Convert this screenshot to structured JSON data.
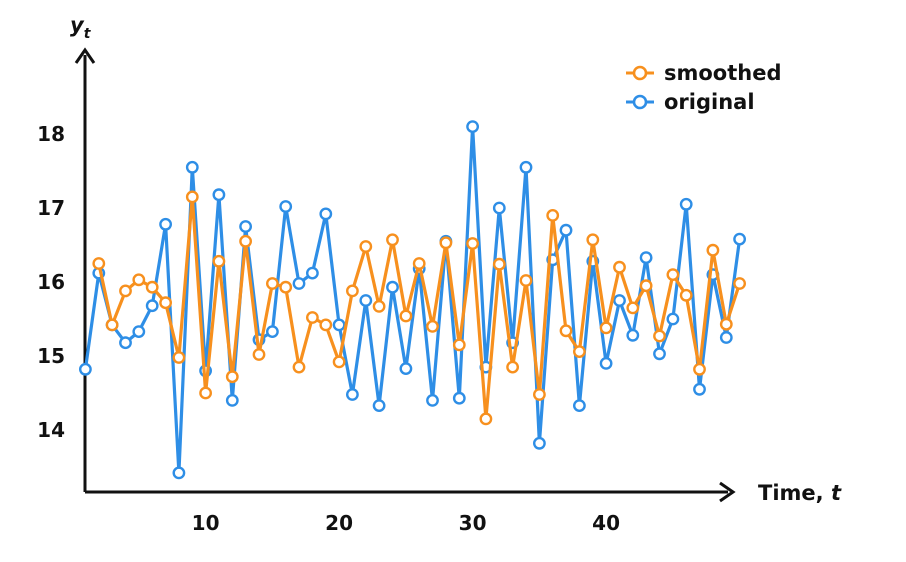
{
  "chart_data": {
    "type": "line",
    "xlabel_prefix": "Time, ",
    "xlabel_var": "t",
    "ylabel_base": "y",
    "ylabel_sub": "t",
    "x_ticks": [
      10,
      20,
      30,
      40
    ],
    "y_ticks": [
      14,
      15,
      16,
      17,
      18
    ],
    "xlim": [
      0,
      50
    ],
    "ylim": [
      12.5,
      19.3
    ],
    "grid": false,
    "legend_position": "top-right",
    "colors": {
      "smoothed": "#f7901e",
      "original": "#2e8ee6",
      "axis": "#111111"
    },
    "x": [
      1,
      2,
      3,
      4,
      5,
      6,
      7,
      8,
      9,
      10,
      11,
      12,
      13,
      14,
      15,
      16,
      17,
      18,
      19,
      20,
      21,
      22,
      23,
      24,
      25,
      26,
      27,
      28,
      29,
      30,
      31,
      32,
      33,
      34,
      35,
      36,
      37,
      38,
      39,
      40,
      41,
      42,
      43,
      44,
      45,
      46,
      47,
      48,
      49,
      50
    ],
    "series": [
      {
        "name": "original",
        "values": [
          14.82,
          16.12,
          15.42,
          15.18,
          15.33,
          15.68,
          16.78,
          13.42,
          17.55,
          14.8,
          17.18,
          14.4,
          16.75,
          15.22,
          15.33,
          17.02,
          15.98,
          16.12,
          16.92,
          15.42,
          14.48,
          15.75,
          14.33,
          15.93,
          14.83,
          16.18,
          14.4,
          16.55,
          14.43,
          18.1,
          14.85,
          17.0,
          15.18,
          17.55,
          13.82,
          16.3,
          16.7,
          14.33,
          16.28,
          14.9,
          15.75,
          15.28,
          16.33,
          15.03,
          15.5,
          17.05,
          14.55,
          16.1,
          15.25,
          16.58
        ]
      },
      {
        "name": "smoothed",
        "values": [
          null,
          16.25,
          15.42,
          15.88,
          16.03,
          15.93,
          15.72,
          14.98,
          17.15,
          14.5,
          16.28,
          14.72,
          16.55,
          15.02,
          15.98,
          15.93,
          14.85,
          15.52,
          15.42,
          14.92,
          15.88,
          16.48,
          15.67,
          16.57,
          15.54,
          16.25,
          15.4,
          16.53,
          15.15,
          16.52,
          14.15,
          16.24,
          14.85,
          16.02,
          14.48,
          16.9,
          15.34,
          15.06,
          16.57,
          15.38,
          16.2,
          15.65,
          15.95,
          15.27,
          16.1,
          15.82,
          14.82,
          16.43,
          15.43,
          15.98
        ]
      }
    ]
  }
}
